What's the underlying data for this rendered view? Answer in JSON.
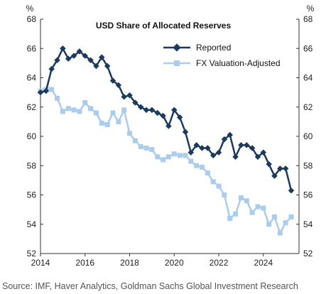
{
  "chart_data": {
    "type": "line",
    "title": "USD Share of Allocated Reserves",
    "unit_left": "%",
    "unit_right": "%",
    "ylim": [
      52,
      68
    ],
    "y_ticks": [
      "52",
      "54",
      "56",
      "58",
      "60",
      "62",
      "64",
      "66",
      "68"
    ],
    "xlim": [
      2014,
      2025.6
    ],
    "x_ticks": [
      "2014",
      "2016",
      "2018",
      "2020",
      "2022",
      "2024"
    ],
    "legend_position": "top-right",
    "grid": false,
    "series": [
      {
        "name": "Reported",
        "color": "#1b3a5c",
        "marker": "diamond",
        "x": [
          2014.0,
          2014.25,
          2014.5,
          2014.75,
          2015.0,
          2015.25,
          2015.5,
          2015.75,
          2016.0,
          2016.25,
          2016.5,
          2016.75,
          2017.0,
          2017.25,
          2017.5,
          2017.75,
          2018.0,
          2018.25,
          2018.5,
          2018.75,
          2019.0,
          2019.25,
          2019.5,
          2019.75,
          2020.0,
          2020.25,
          2020.5,
          2020.75,
          2021.0,
          2021.25,
          2021.5,
          2021.75,
          2022.0,
          2022.25,
          2022.5,
          2022.75,
          2023.0,
          2023.25,
          2023.5,
          2023.75,
          2024.0,
          2024.25,
          2024.5,
          2024.75,
          2025.0,
          2025.25
        ],
        "values": [
          63.0,
          63.1,
          64.6,
          65.2,
          66.0,
          65.3,
          65.5,
          65.8,
          65.5,
          65.2,
          64.8,
          65.4,
          64.8,
          63.8,
          63.5,
          62.7,
          62.8,
          62.3,
          62.0,
          61.8,
          61.8,
          61.6,
          61.4,
          60.7,
          61.8,
          61.3,
          60.3,
          58.9,
          59.4,
          59.2,
          59.2,
          58.7,
          58.9,
          59.8,
          60.1,
          58.6,
          59.4,
          59.4,
          59.2,
          58.6,
          58.9,
          58.1,
          57.3,
          57.8,
          57.8,
          56.3
        ]
      },
      {
        "name": "FX Valuation-Adjusted",
        "color": "#a9cdeb",
        "marker": "square",
        "x": [
          2014.0,
          2014.25,
          2014.5,
          2014.75,
          2015.0,
          2015.25,
          2015.5,
          2015.75,
          2016.0,
          2016.25,
          2016.5,
          2016.75,
          2017.0,
          2017.25,
          2017.5,
          2017.75,
          2018.0,
          2018.25,
          2018.5,
          2018.75,
          2019.0,
          2019.25,
          2019.5,
          2019.75,
          2020.0,
          2020.25,
          2020.5,
          2020.75,
          2021.0,
          2021.25,
          2021.5,
          2021.75,
          2022.0,
          2022.25,
          2022.5,
          2022.75,
          2023.0,
          2023.25,
          2023.5,
          2023.75,
          2024.0,
          2024.25,
          2024.5,
          2024.75,
          2025.0,
          2025.25
        ],
        "values": [
          63.1,
          63.2,
          63.2,
          62.6,
          61.7,
          61.9,
          61.8,
          61.7,
          62.3,
          61.9,
          61.6,
          60.9,
          60.8,
          61.6,
          61.0,
          61.8,
          60.2,
          59.7,
          59.3,
          59.2,
          59.1,
          58.6,
          58.4,
          58.6,
          58.8,
          58.7,
          58.7,
          58.3,
          58.0,
          57.9,
          57.5,
          56.9,
          56.6,
          56.0,
          54.4,
          54.7,
          55.8,
          55.6,
          54.8,
          55.2,
          55.1,
          54.0,
          54.5,
          53.4,
          54.1,
          54.5
        ]
      }
    ]
  },
  "source": "Source: IMF, Haver Analytics, Goldman Sachs Global Investment Research"
}
